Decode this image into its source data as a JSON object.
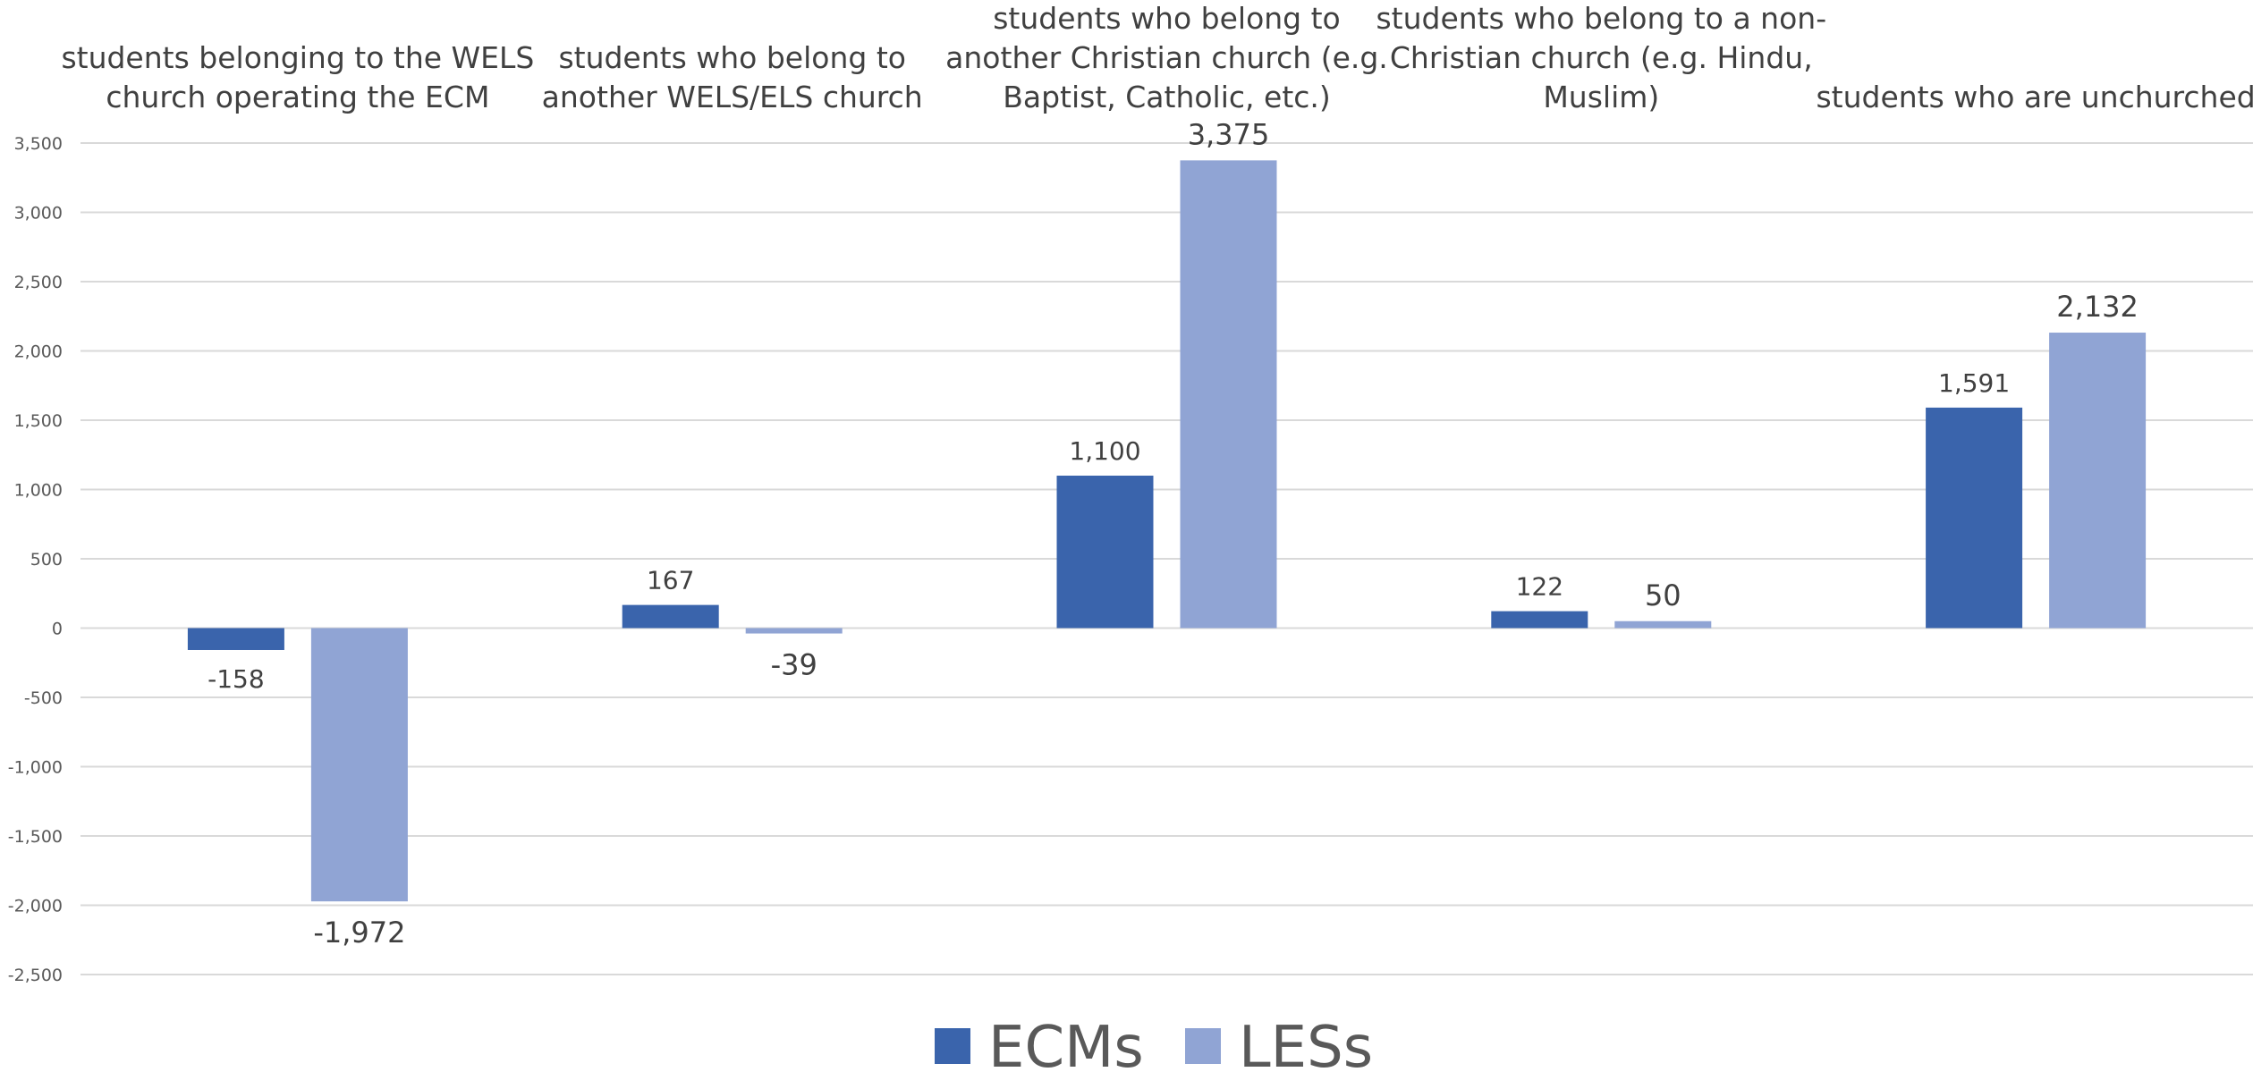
{
  "chart_data": {
    "type": "bar",
    "title": "",
    "xlabel": "",
    "ylabel": "",
    "categories": [
      [
        "students belonging to the WELS",
        "church operating the ECM"
      ],
      [
        "students who belong to",
        "another WELS/ELS church"
      ],
      [
        "students who belong to",
        "another Christian church (e.g.",
        "Baptist, Catholic, etc.)"
      ],
      [
        "students who belong to a non-",
        "Christian church (e.g. Hindu,",
        "Muslim)"
      ],
      [
        "students who are unchurched"
      ]
    ],
    "series": [
      {
        "name": "ECMs",
        "color": "#3A64AC",
        "values": [
          -158,
          167,
          1100,
          122,
          1591
        ],
        "labels": [
          "-158",
          "167",
          "1,100",
          "122",
          "1,591"
        ]
      },
      {
        "name": "LESs",
        "color": "#90A4D4",
        "values": [
          -1972,
          -39,
          3375,
          50,
          2132
        ],
        "labels": [
          "-1,972",
          "-39",
          "3,375",
          "50",
          "2,132"
        ]
      }
    ],
    "ylim": [
      -2500,
      3500
    ],
    "ytick_step": 500,
    "ytick_labels": [
      "3,500",
      "3,000",
      "2,500",
      "2,000",
      "1,500",
      "1,000",
      "500",
      "0",
      "-500",
      "-1,000",
      "-1,500",
      "-2,000",
      "-2,500"
    ],
    "grid": true,
    "legend_position": "bottom-center"
  }
}
